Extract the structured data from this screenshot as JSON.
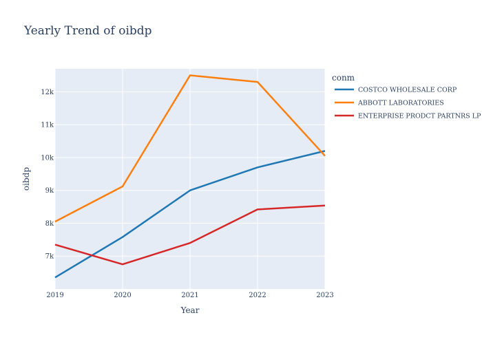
{
  "chart_data": {
    "type": "line",
    "title": "Yearly Trend of oibdp",
    "xlabel": "Year",
    "ylabel": "oibdp",
    "x": [
      2019,
      2020,
      2021,
      2022,
      2023
    ],
    "x_ticks": [
      "2019",
      "2020",
      "2021",
      "2022",
      "2023"
    ],
    "xlim": [
      2019,
      2023
    ],
    "ylim": [
      6000,
      12700
    ],
    "y_ticks": [
      7000,
      8000,
      9000,
      10000,
      11000,
      12000
    ],
    "y_tick_labels": [
      "7k",
      "8k",
      "9k",
      "10k",
      "11k",
      "12k"
    ],
    "legend_title": "conm",
    "legend_position": "right",
    "grid": true,
    "plot_bg": "#e5ecf6",
    "series": [
      {
        "name": "COSTCO WHOLESALE CORP",
        "color": "#1f77b4",
        "values": [
          6350,
          7580,
          9000,
          9700,
          10200
        ]
      },
      {
        "name": "ABBOTT LABORATORIES",
        "color": "#ff7f0e",
        "values": [
          8050,
          9120,
          12500,
          12300,
          10050
        ]
      },
      {
        "name": "ENTERPRISE PRODCT PARTNRS LP",
        "color": "#d62728",
        "values": [
          7350,
          6750,
          7400,
          8420,
          8540
        ]
      }
    ]
  }
}
